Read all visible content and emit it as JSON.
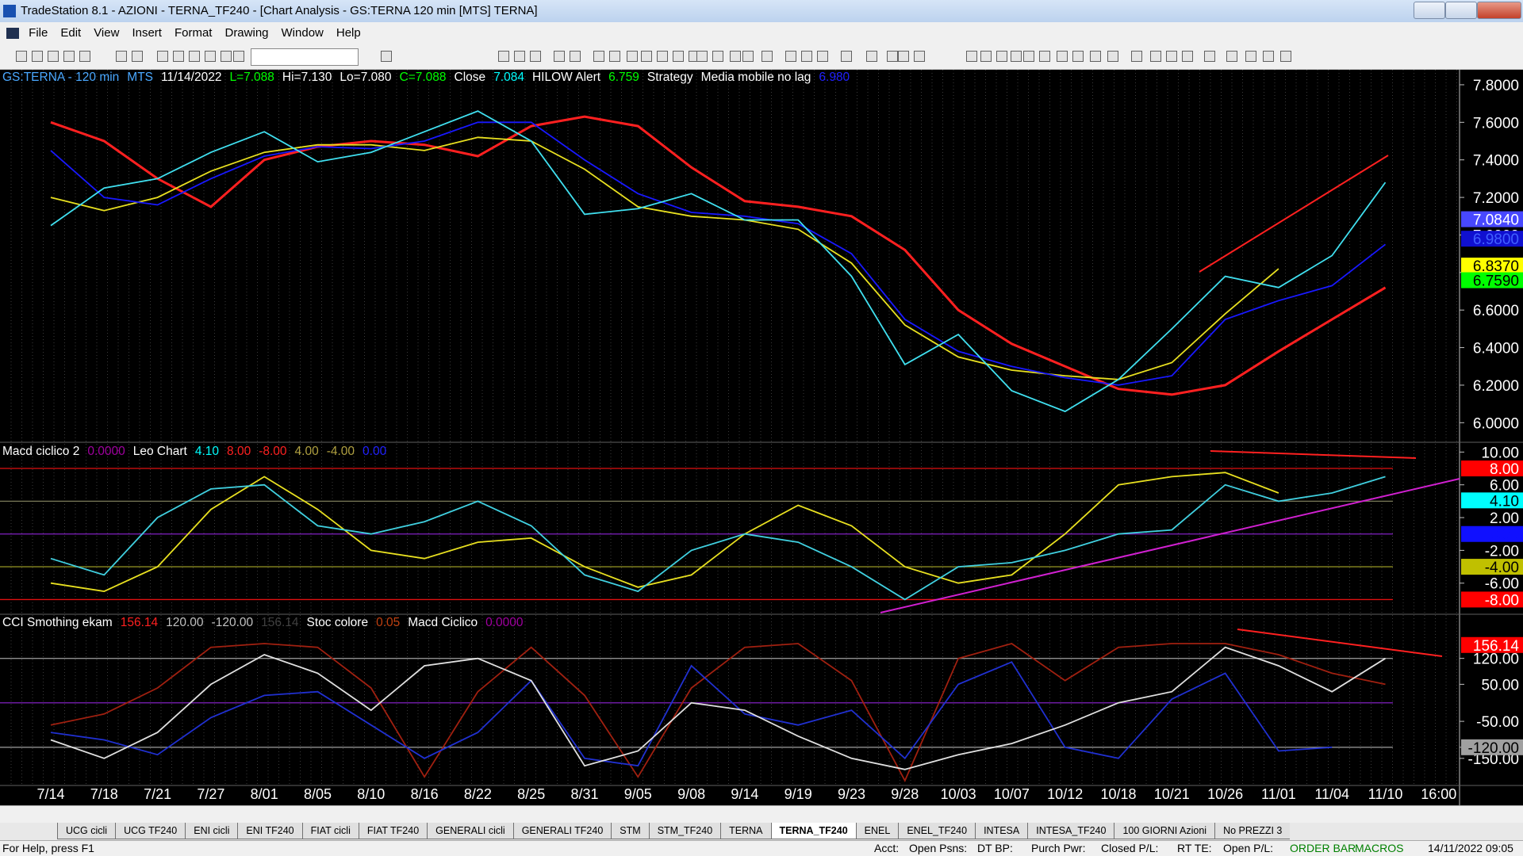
{
  "window": {
    "title": "TradeStation 8.1 - AZIONI - TERNA_TF240 - [Chart Analysis - GS:TERNA  120 min  [MTS] TERNA]"
  },
  "menu": [
    "File",
    "Edit",
    "View",
    "Insert",
    "Format",
    "Drawing",
    "Window",
    "Help"
  ],
  "chart": {
    "categories": [
      "7/14",
      "7/18",
      "7/21",
      "7/27",
      "8/01",
      "8/05",
      "8/10",
      "8/16",
      "8/22",
      "8/25",
      "8/31",
      "9/05",
      "9/08",
      "9/14",
      "9/19",
      "9/23",
      "9/28",
      "10/03",
      "10/07",
      "10/12",
      "10/18",
      "10/21",
      "10/26",
      "11/01",
      "11/04",
      "11/10",
      "16:00"
    ],
    "panels": [
      {
        "type": "line",
        "header": [
          {
            "text": "GS:TERNA - 120 min",
            "color": "#4aa8ff"
          },
          {
            "text": "MTS",
            "color": "#4aa8ff"
          },
          {
            "text": "11/14/2022",
            "color": "#ffffff"
          },
          {
            "text": "L=7.088",
            "color": "#00ff00"
          },
          {
            "text": "Hi=7.130",
            "color": "#ffffff"
          },
          {
            "text": "Lo=7.080",
            "color": "#ffffff"
          },
          {
            "text": "C=7.088",
            "color": "#00ff00"
          },
          {
            "text": "Close",
            "color": "#ffffff"
          },
          {
            "text": "7.084",
            "color": "#00ffff"
          },
          {
            "text": "HILOW Alert",
            "color": "#ffffff"
          },
          {
            "text": "6.759",
            "color": "#00ff00"
          },
          {
            "text": "Strategy",
            "color": "#ffffff"
          },
          {
            "text": "Media mobile no lag",
            "color": "#ffffff"
          },
          {
            "text": "6.980",
            "color": "#2020ff"
          }
        ],
        "ylim": [
          5.9,
          7.88
        ],
        "yticks": [
          {
            "value": 6.0,
            "label": "6.0000"
          },
          {
            "value": 6.2,
            "label": "6.2000"
          },
          {
            "value": 6.4,
            "label": "6.4000"
          },
          {
            "value": 6.6,
            "label": "6.6000"
          },
          {
            "value": 6.8,
            "label": "6.8000"
          },
          {
            "value": 7.0,
            "label": "7.0000"
          },
          {
            "value": 7.2,
            "label": "7.2000"
          },
          {
            "value": 7.4,
            "label": "7.4000"
          },
          {
            "value": 7.6,
            "label": "7.6000"
          },
          {
            "value": 7.8,
            "label": "7.8000"
          }
        ],
        "markers": [
          {
            "value": 7.084,
            "label": "7.0840",
            "color": "#4848ff",
            "text_color": "#ffffff"
          },
          {
            "value": 6.98,
            "label": "6.9800",
            "color": "#1010d0",
            "text_color": "#4060ff"
          },
          {
            "value": 6.837,
            "label": "6.8370",
            "color": "#ffff00",
            "text_color": "#000000"
          },
          {
            "value": 6.759,
            "label": "6.7590",
            "color": "#00ff00",
            "text_color": "#000000"
          }
        ],
        "series": [
          {
            "color": "#ff2020",
            "values": [
              7.6,
              7.5,
              7.3,
              7.15,
              7.4,
              7.47,
              7.5,
              7.48,
              7.42,
              7.58,
              7.63,
              7.58,
              7.36,
              7.18,
              7.15,
              7.1,
              6.92,
              6.6,
              6.42,
              6.3,
              6.18,
              6.15,
              6.2,
              6.38,
              6.55,
              6.72,
              null
            ]
          },
          {
            "color": "#e8e020",
            "values": [
              7.2,
              7.13,
              7.2,
              7.34,
              7.44,
              7.48,
              7.48,
              7.45,
              7.52,
              7.5,
              7.35,
              7.15,
              7.1,
              7.08,
              7.03,
              6.85,
              6.52,
              6.35,
              6.28,
              6.25,
              6.23,
              6.32,
              6.58,
              6.82,
              null,
              null,
              null
            ]
          },
          {
            "color": "#1818ff",
            "values": [
              7.45,
              7.2,
              7.16,
              7.3,
              7.42,
              7.47,
              7.46,
              7.5,
              7.6,
              7.6,
              7.4,
              7.22,
              7.12,
              7.1,
              7.06,
              6.9,
              6.55,
              6.38,
              6.3,
              6.24,
              6.2,
              6.25,
              6.55,
              6.65,
              6.73,
              6.95,
              null
            ]
          },
          {
            "color": "#40e0f0",
            "values": [
              7.05,
              7.25,
              7.3,
              7.44,
              7.55,
              7.39,
              7.44,
              7.55,
              7.66,
              7.5,
              7.11,
              7.14,
              7.22,
              7.08,
              7.08,
              6.78,
              6.31,
              6.47,
              6.17,
              6.06,
              6.23,
              6.5,
              6.78,
              6.72,
              6.89,
              7.28,
              null
            ]
          }
        ]
      },
      {
        "type": "line",
        "header": [
          {
            "text": "Macd ciclico 2",
            "color": "#ffffff"
          },
          {
            "text": "0.0000",
            "color": "#a000a0"
          },
          {
            "text": "Leo Chart",
            "color": "#ffffff"
          },
          {
            "text": "4.10",
            "color": "#00ffff"
          },
          {
            "text": "8.00",
            "color": "#ff2020"
          },
          {
            "text": "-8.00",
            "color": "#ff2020"
          },
          {
            "text": "4.00",
            "color": "#b0a040"
          },
          {
            "text": "-4.00",
            "color": "#b0a040"
          },
          {
            "text": "0.00",
            "color": "#2020ff"
          }
        ],
        "ylim": [
          -9.7,
          11
        ],
        "yticks": [
          {
            "value": 10,
            "label": "10.00"
          },
          {
            "value": 6,
            "label": "6.00"
          },
          {
            "value": 2,
            "label": "2.00"
          },
          {
            "value": -2,
            "label": "-2.00"
          },
          {
            "value": -6,
            "label": "-6.00"
          }
        ],
        "levels": [
          {
            "value": 8,
            "color": "#e01010"
          },
          {
            "value": 4,
            "color": "#7a7a5a"
          },
          {
            "value": 0,
            "color": "#8020c0"
          },
          {
            "value": -4,
            "color": "#8a8a20"
          },
          {
            "value": -8,
            "color": "#e01010"
          }
        ],
        "markers": [
          {
            "value": 8,
            "label": "8.00",
            "color": "#ff0000",
            "text_color": "#ffffff"
          },
          {
            "value": 4.1,
            "label": "4.10",
            "color": "#00ffff",
            "text_color": "#000000"
          },
          {
            "value": 0,
            "label": "0.00",
            "color": "#1010ff",
            "text_color": "#1010ff"
          },
          {
            "value": -4,
            "label": "-4.00",
            "color": "#c0c000",
            "text_color": "#000000"
          },
          {
            "value": -8,
            "label": "-8.00",
            "color": "#ff0000",
            "text_color": "#ffffff"
          }
        ],
        "series": [
          {
            "color": "#e8e020",
            "values": [
              -6,
              -7,
              -4,
              3,
              7,
              3,
              -2,
              -3,
              -1,
              -0.5,
              -4,
              -6.5,
              -5,
              0,
              3.5,
              1,
              -4,
              -6,
              -5,
              0,
              6,
              7,
              7.5,
              5,
              null,
              null,
              null
            ]
          },
          {
            "color": "#40d0e0",
            "values": [
              -3,
              -5,
              2,
              5.5,
              6,
              1,
              0,
              1.5,
              4,
              1,
              -5,
              -7,
              -2,
              0,
              -1,
              -4,
              -8,
              -4,
              -3.5,
              -2,
              0,
              0.5,
              6,
              4,
              5,
              7,
              null
            ]
          }
        ]
      },
      {
        "type": "line",
        "header": [
          {
            "text": "CCI Smothing ekam",
            "color": "#ffffff"
          },
          {
            "text": "156.14",
            "color": "#ff2020"
          },
          {
            "text": "120.00",
            "color": "#c0c0c0"
          },
          {
            "text": "-120.00",
            "color": "#c0c0c0"
          },
          {
            "text": "156.14",
            "color": "#404040"
          },
          {
            "text": "Stoc colore",
            "color": "#ffffff"
          },
          {
            "text": "0.05",
            "color": "#c04010"
          },
          {
            "text": "Macd Ciclico",
            "color": "#ffffff"
          },
          {
            "text": "0.0000",
            "color": "#a000a0"
          }
        ],
        "ylim": [
          -221,
          237
        ],
        "yticks": [
          {
            "value": 120,
            "label": "120.00"
          },
          {
            "value": 50,
            "label": "50.00"
          },
          {
            "value": -50,
            "label": "-50.00"
          },
          {
            "value": -120,
            "label": "-120.00"
          },
          {
            "value": -150,
            "label": "-150.00"
          }
        ],
        "levels": [
          {
            "value": 120,
            "color": "#909090"
          },
          {
            "value": 0,
            "color": "#8020c0"
          },
          {
            "value": -120,
            "color": "#909090"
          }
        ],
        "markers": [
          {
            "value": 156.14,
            "label": "156.14",
            "color": "#ff0000",
            "text_color": "#ffffff"
          },
          {
            "value": -120,
            "label": "-120.00",
            "color": "#a0a0a0",
            "text_color": "#000000"
          }
        ],
        "series": [
          {
            "color": "#a02010",
            "values": [
              -60,
              -30,
              40,
              150,
              160,
              150,
              40,
              -200,
              30,
              150,
              20,
              -200,
              40,
              150,
              160,
              60,
              -210,
              120,
              160,
              60,
              150,
              160,
              160,
              130,
              80,
              50,
              null
            ]
          },
          {
            "color": "#2030d0",
            "values": [
              -80,
              -100,
              -140,
              -40,
              20,
              30,
              -60,
              -150,
              -80,
              60,
              -150,
              -170,
              100,
              -30,
              -60,
              -20,
              -150,
              50,
              110,
              -120,
              -150,
              10,
              80,
              -130,
              -120,
              null,
              null
            ]
          },
          {
            "color": "#e0e0e0",
            "values": [
              -100,
              -150,
              -80,
              50,
              130,
              80,
              -20,
              100,
              120,
              60,
              -170,
              -130,
              0,
              -20,
              -90,
              -150,
              -180,
              -140,
              -110,
              -60,
              0,
              30,
              150,
              100,
              30,
              120,
              null
            ]
          }
        ]
      }
    ]
  },
  "tabs": [
    "UCG cicli",
    "UCG TF240",
    "ENI cicli",
    "ENI TF240",
    "FIAT cicli",
    "FIAT TF240",
    "GENERALI cicli",
    "GENERALI TF240",
    "STM",
    "STM_TF240",
    "TERNA",
    "TERNA_TF240",
    "ENEL",
    "ENEL_TF240",
    "INTESA",
    "INTESA_TF240",
    "100 GIORNI Azioni",
    "No PREZZI 3"
  ],
  "active_tab": 11,
  "status": {
    "help": "For Help, press F1",
    "fields": [
      "Acct:",
      "Open Psns:",
      "DT BP:",
      "Purch Pwr:",
      "Closed P/L:",
      "RT TE:",
      "Open P/L:"
    ],
    "order_bar": "ORDER BAR",
    "macros": "MACROS",
    "clock": "14/11/2022 09:05"
  }
}
